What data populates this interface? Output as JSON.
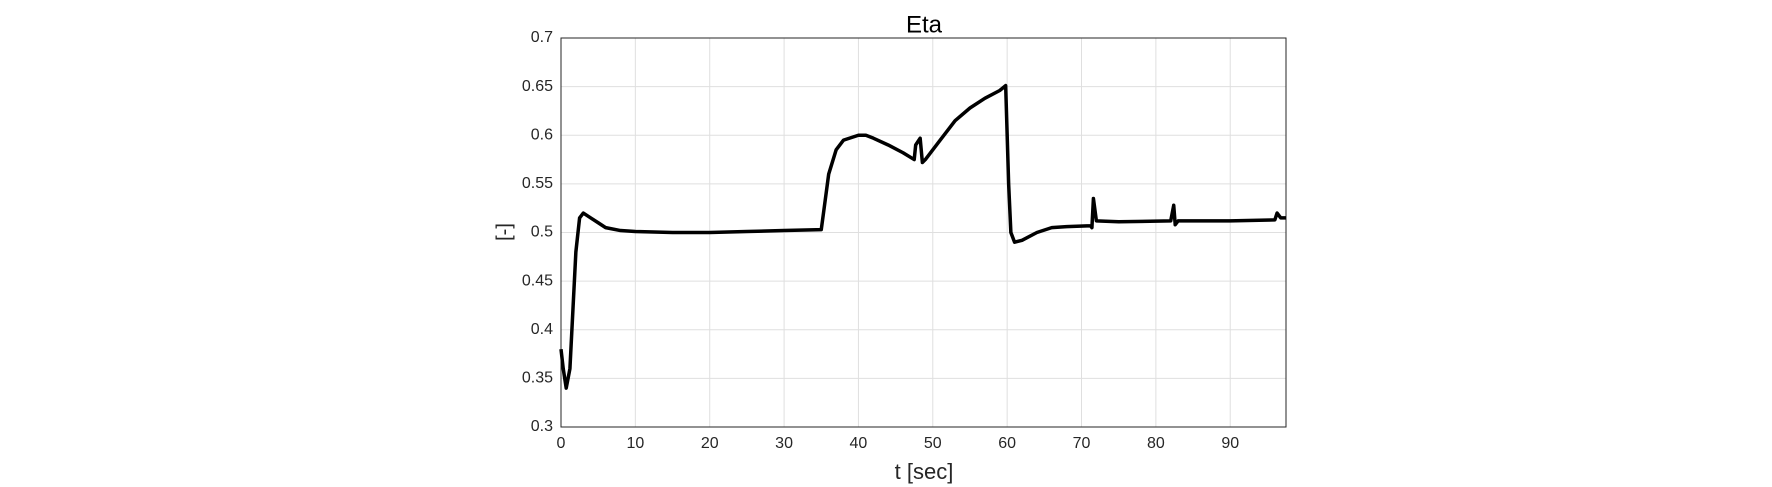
{
  "chart_data": {
    "type": "line",
    "title": "Eta",
    "xlabel": "t [sec]",
    "ylabel": "[-]",
    "x": [
      0,
      0.3,
      0.7,
      1.2,
      1.6,
      2,
      2.5,
      3,
      4,
      5,
      6,
      8,
      10,
      15,
      20,
      25,
      30,
      35,
      35.3,
      36,
      37,
      38,
      40,
      41,
      42,
      44,
      46,
      47.5,
      47.7,
      48.3,
      48.6,
      49,
      51,
      53,
      55,
      57,
      59,
      59.8,
      60.2,
      60.5,
      61,
      62,
      64,
      66,
      68,
      71.2,
      71.4,
      71.6,
      72,
      75,
      82,
      82.4,
      82.6,
      83,
      90,
      96,
      96.3,
      96.8,
      97.5
    ],
    "series": [
      {
        "name": "Eta",
        "color": "#000000",
        "values": [
          0.38,
          0.36,
          0.34,
          0.36,
          0.42,
          0.48,
          0.515,
          0.52,
          0.515,
          0.51,
          0.505,
          0.502,
          0.501,
          0.5,
          0.5,
          0.501,
          0.502,
          0.503,
          0.52,
          0.56,
          0.585,
          0.595,
          0.6,
          0.6,
          0.597,
          0.59,
          0.582,
          0.575,
          0.59,
          0.597,
          0.572,
          0.575,
          0.595,
          0.615,
          0.628,
          0.638,
          0.646,
          0.651,
          0.55,
          0.5,
          0.49,
          0.492,
          0.5,
          0.505,
          0.506,
          0.507,
          0.505,
          0.535,
          0.512,
          0.511,
          0.512,
          0.528,
          0.508,
          0.512,
          0.512,
          0.513,
          0.52,
          0.515,
          0.515
        ]
      }
    ],
    "xlim": [
      0,
      97.5
    ],
    "ylim": [
      0.3,
      0.7
    ],
    "xticks": [
      0,
      10,
      20,
      30,
      40,
      50,
      60,
      70,
      80,
      90
    ],
    "yticks": [
      0.3,
      0.35,
      0.4,
      0.45,
      0.5,
      0.55,
      0.6,
      0.65,
      0.7
    ],
    "grid": true
  }
}
